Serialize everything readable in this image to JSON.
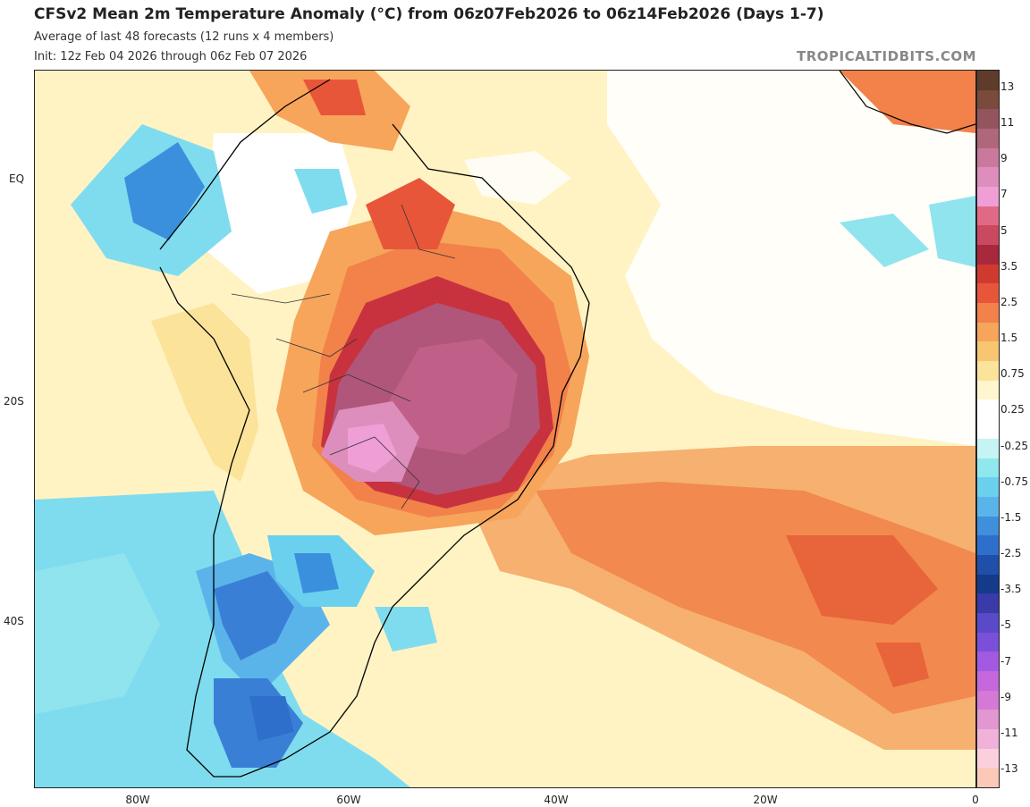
{
  "header": {
    "title": "CFSv2 Mean 2m Temperature Anomaly (°C) from 06z07Feb2026 to 06z14Feb2026 (Days 1-7)",
    "subtitle": "Average of last 48 forecasts (12 runs x 4 members)",
    "init": "Init: 12z Feb 04 2026 through 06z Feb 07 2026",
    "brand": "TROPICALTIDBITS.COM"
  },
  "axes": {
    "lat_labels": [
      "EQ",
      "20S",
      "40S"
    ],
    "lon_labels": [
      "80W",
      "60W",
      "40W",
      "20W",
      "0"
    ]
  },
  "colorbar": {
    "labels": [
      "13",
      "11",
      "9",
      "7",
      "5",
      "3.5",
      "2.5",
      "1.5",
      "0.75",
      "0.25",
      "-0.25",
      "-0.75",
      "-1.5",
      "-2.5",
      "-3.5",
      "-5",
      "-7",
      "-9",
      "-11",
      "-13"
    ],
    "colors": [
      "#5e3b2a",
      "#7a4a3a",
      "#94545e",
      "#b0677a",
      "#c97a9c",
      "#dd8ebc",
      "#ef9fd6",
      "#e06a86",
      "#c94a60",
      "#a8283c",
      "#d03a2e",
      "#e8563a",
      "#f2814a",
      "#f6a55a",
      "#f8c670",
      "#fbe39a",
      "#fff6d0",
      "#ffffff",
      "#ffffff",
      "#c6f3f3",
      "#90e8ee",
      "#6ad0ee",
      "#5ab4ea",
      "#3f8fdc",
      "#2f6fcc",
      "#1f4fa8",
      "#153a8a",
      "#3a3aa8",
      "#5a4ac8",
      "#7a50d8",
      "#a25ae0",
      "#c468dc",
      "#d47ad6",
      "#e296d2",
      "#f0b2d8",
      "#fbd0dc",
      "#fcc8b8"
    ]
  },
  "legend_colors": {
    "deep_positive": "#b0567a",
    "strong_positive": "#c8506a",
    "warm": "#f08a4e",
    "mild_warm": "#fbe0a0",
    "neutral": "#ffffff",
    "cool": "#7fdcee",
    "cold": "#3a7fd6"
  }
}
